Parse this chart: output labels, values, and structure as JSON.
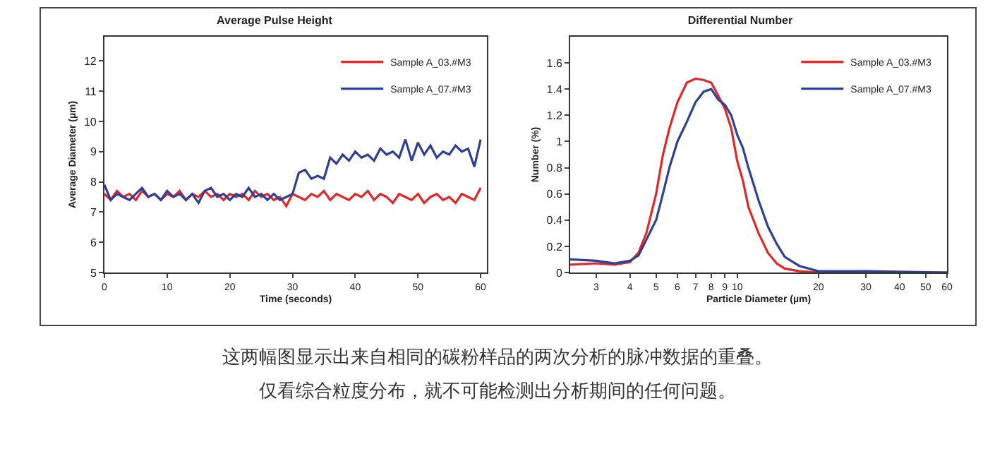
{
  "chart_data": [
    {
      "type": "line",
      "title": "Average Pulse Height",
      "xlabel": "Time (seconds)",
      "ylabel": "Average Diameter (µm)",
      "xlim": [
        0,
        61
      ],
      "xticks": [
        0,
        10,
        20,
        30,
        40,
        50,
        60
      ],
      "ylim": [
        5,
        12.8
      ],
      "yticks": [
        5,
        6,
        7,
        8,
        9,
        10,
        11,
        12
      ],
      "grid": false,
      "legend": "top right",
      "marker": "none",
      "line_style": "solid",
      "x": [
        0,
        1,
        2,
        3,
        4,
        5,
        6,
        7,
        8,
        9,
        10,
        11,
        12,
        13,
        14,
        15,
        16,
        17,
        18,
        19,
        20,
        21,
        22,
        23,
        24,
        25,
        26,
        27,
        28,
        29,
        30,
        31,
        32,
        33,
        34,
        35,
        36,
        37,
        38,
        39,
        40,
        41,
        42,
        43,
        44,
        45,
        46,
        47,
        48,
        49,
        50,
        51,
        52,
        53,
        54,
        55,
        56,
        57,
        58,
        59,
        60
      ],
      "series": [
        {
          "name": "Sample A_03.#M3",
          "color": "#e02828",
          "values": [
            7.6,
            7.4,
            7.7,
            7.5,
            7.6,
            7.4,
            7.7,
            7.5,
            7.6,
            7.4,
            7.6,
            7.5,
            7.7,
            7.4,
            7.6,
            7.5,
            7.7,
            7.5,
            7.6,
            7.4,
            7.6,
            7.5,
            7.6,
            7.4,
            7.7,
            7.5,
            7.6,
            7.4,
            7.5,
            7.2,
            7.6,
            7.5,
            7.4,
            7.6,
            7.5,
            7.7,
            7.4,
            7.6,
            7.5,
            7.4,
            7.6,
            7.5,
            7.7,
            7.4,
            7.6,
            7.5,
            7.3,
            7.6,
            7.5,
            7.4,
            7.6,
            7.3,
            7.5,
            7.6,
            7.4,
            7.5,
            7.3,
            7.6,
            7.5,
            7.4,
            7.8
          ]
        },
        {
          "name": "Sample A_07.#M3",
          "color": "#2e3f96",
          "values": [
            7.9,
            7.4,
            7.6,
            7.5,
            7.4,
            7.6,
            7.8,
            7.5,
            7.6,
            7.4,
            7.7,
            7.5,
            7.6,
            7.4,
            7.6,
            7.3,
            7.7,
            7.8,
            7.5,
            7.6,
            7.4,
            7.6,
            7.5,
            7.8,
            7.5,
            7.6,
            7.4,
            7.6,
            7.4,
            7.5,
            7.6,
            8.3,
            8.4,
            8.1,
            8.2,
            8.1,
            8.8,
            8.6,
            8.9,
            8.7,
            9.0,
            8.8,
            8.9,
            8.7,
            9.1,
            8.9,
            9.0,
            8.8,
            9.4,
            8.7,
            9.3,
            8.9,
            9.2,
            8.8,
            9.0,
            8.9,
            9.2,
            9.0,
            9.1,
            8.5,
            9.4
          ]
        }
      ],
      "annotations": [
        "这两幅图显示出来自相同的碳粉样品的两次分析的脉冲数据的重叠。",
        "仅看综合粒度分布，就不可能检测出分析期间的任何问题。"
      ]
    },
    {
      "type": "line",
      "title": "Differential Number",
      "xlabel": "Particle Diameter (µm)",
      "ylabel": "Number (%)",
      "log": "x",
      "xlim": [
        2.4,
        60
      ],
      "xticks": [
        3,
        4,
        5,
        6,
        7,
        8,
        9,
        10,
        20,
        30,
        40,
        50,
        60
      ],
      "ylim": [
        0,
        1.8
      ],
      "yticks": [
        0,
        0.2,
        0.4,
        0.6,
        0.8,
        1,
        1.2,
        1.4,
        1.6
      ],
      "grid": false,
      "legend": "top right",
      "marker": "none",
      "line_style": "solid",
      "x": [
        2.4,
        3,
        3.5,
        4,
        4.3,
        4.6,
        5,
        5.3,
        5.6,
        6,
        6.5,
        7,
        7.5,
        8,
        8.5,
        9,
        9.5,
        10,
        10.5,
        11,
        12,
        13,
        14,
        15,
        17,
        20,
        30,
        60
      ],
      "series": [
        {
          "name": "Sample A_03.#M3",
          "color": "#e02828",
          "values": [
            0.06,
            0.07,
            0.06,
            0.08,
            0.15,
            0.3,
            0.6,
            0.9,
            1.1,
            1.3,
            1.45,
            1.48,
            1.47,
            1.45,
            1.35,
            1.25,
            1.1,
            0.85,
            0.7,
            0.5,
            0.3,
            0.15,
            0.07,
            0.03,
            0.01,
            0,
            0,
            0
          ]
        },
        {
          "name": "Sample A_07.#M3",
          "color": "#2e3f96",
          "values": [
            0.1,
            0.09,
            0.07,
            0.09,
            0.13,
            0.25,
            0.4,
            0.6,
            0.8,
            1.0,
            1.15,
            1.3,
            1.38,
            1.4,
            1.32,
            1.28,
            1.2,
            1.05,
            0.95,
            0.8,
            0.55,
            0.35,
            0.22,
            0.12,
            0.05,
            0.01,
            0.01,
            0
          ]
        }
      ]
    }
  ]
}
